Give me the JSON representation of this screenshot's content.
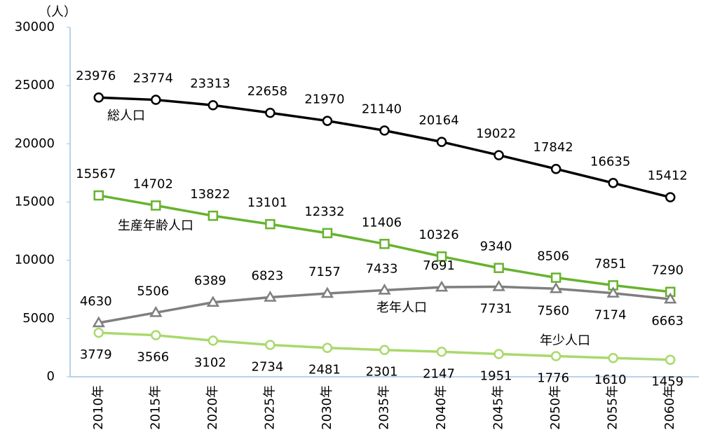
{
  "chart_data": {
    "type": "line",
    "y_axis_label": "（人）",
    "categories": [
      "2010年",
      "2015年",
      "2020年",
      "2025年",
      "2030年",
      "2035年",
      "2040年",
      "2045年",
      "2050年",
      "2055年",
      "2060年"
    ],
    "series": [
      {
        "name": "総人口",
        "color": "#000000",
        "marker": "circle",
        "values": [
          23976,
          23774,
          23313,
          22658,
          21970,
          21140,
          20164,
          19022,
          17842,
          16635,
          15412
        ]
      },
      {
        "name": "生産年齢人口",
        "color": "#66b32e",
        "marker": "square",
        "values": [
          15567,
          14702,
          13822,
          13101,
          12332,
          11406,
          10326,
          9340,
          8506,
          7851,
          7290
        ]
      },
      {
        "name": "老年人口",
        "color": "#7f7f7f",
        "marker": "triangle",
        "values": [
          4630,
          5506,
          6389,
          6823,
          7157,
          7433,
          7691,
          7731,
          7560,
          7174,
          6663
        ]
      },
      {
        "name": "年少人口",
        "color": "#a9d96c",
        "marker": "circle",
        "values": [
          3779,
          3566,
          3102,
          2734,
          2481,
          2301,
          2147,
          1951,
          1776,
          1610,
          1459
        ]
      }
    ],
    "ylim": [
      0,
      30000
    ],
    "yticks": [
      0,
      5000,
      10000,
      15000,
      20000,
      25000,
      30000
    ],
    "grid": false
  }
}
